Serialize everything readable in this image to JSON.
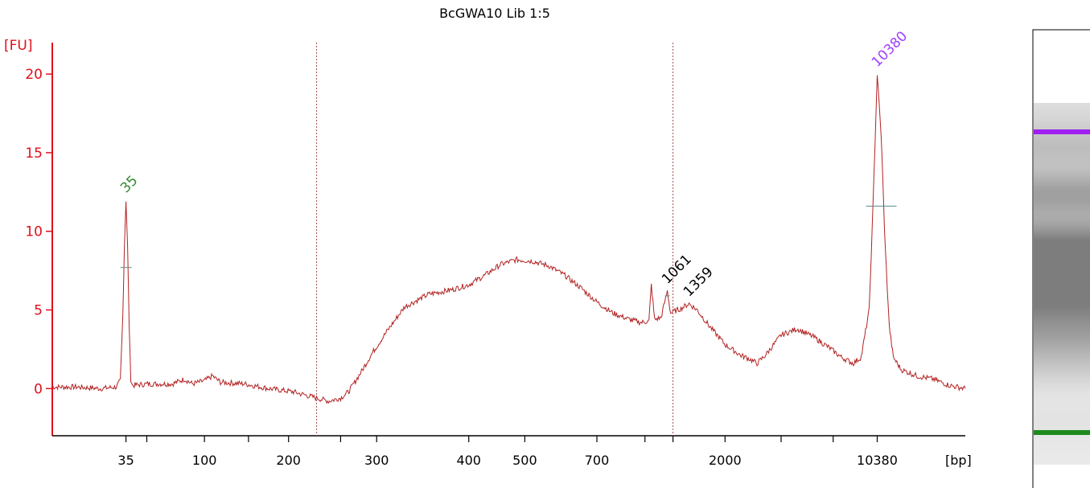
{
  "chart_data": {
    "type": "line",
    "title": "BcGWA10 Lib 1:5",
    "ylabel": "[FU]",
    "xlabel": "[bp]",
    "ylim": [
      -3,
      22
    ],
    "yticks": [
      0,
      5,
      10,
      15,
      20
    ],
    "xtick_labels": [
      "35",
      "100",
      "200",
      "300",
      "400",
      "500",
      "700",
      "2000",
      "10380"
    ],
    "peak_labels": [
      {
        "text": "35",
        "color": "#2e8b2e",
        "x_bp": 35,
        "y": 12.0
      },
      {
        "text": "1061",
        "color": "#000000",
        "x_bp": 1061,
        "y": 6.2
      },
      {
        "text": "1359",
        "color": "#000000",
        "x_bp": 1359,
        "y": 5.4
      },
      {
        "text": "10380",
        "color": "#a040ff",
        "x_bp": 10380,
        "y": 20.0
      }
    ],
    "series": [
      {
        "color": "#b22222",
        "points": [
          [
            0.0,
            0.1
          ],
          [
            0.03,
            0.1
          ],
          [
            0.06,
            0.0
          ],
          [
            0.08,
            0.1
          ],
          [
            0.085,
            0.5
          ],
          [
            0.088,
            4.5
          ],
          [
            0.09,
            9.0
          ],
          [
            0.092,
            12.0
          ],
          [
            0.094,
            9.0
          ],
          [
            0.096,
            4.0
          ],
          [
            0.098,
            0.6
          ],
          [
            0.1,
            0.2
          ],
          [
            0.12,
            0.3
          ],
          [
            0.15,
            0.3
          ],
          [
            0.165,
            0.6
          ],
          [
            0.175,
            0.3
          ],
          [
            0.19,
            0.5
          ],
          [
            0.2,
            0.8
          ],
          [
            0.21,
            0.4
          ],
          [
            0.24,
            0.3
          ],
          [
            0.27,
            0.0
          ],
          [
            0.3,
            -0.2
          ],
          [
            0.33,
            -0.6
          ],
          [
            0.345,
            -0.8
          ],
          [
            0.36,
            -0.6
          ],
          [
            0.37,
            -0.2
          ],
          [
            0.385,
            1.0
          ],
          [
            0.4,
            2.3
          ],
          [
            0.42,
            3.8
          ],
          [
            0.44,
            5.2
          ],
          [
            0.47,
            6.0
          ],
          [
            0.5,
            6.3
          ],
          [
            0.52,
            6.6
          ],
          [
            0.54,
            7.2
          ],
          [
            0.56,
            7.9
          ],
          [
            0.58,
            8.2
          ],
          [
            0.6,
            8.1
          ],
          [
            0.62,
            7.8
          ],
          [
            0.64,
            7.2
          ],
          [
            0.66,
            6.4
          ],
          [
            0.68,
            5.5
          ],
          [
            0.7,
            4.8
          ],
          [
            0.72,
            4.4
          ],
          [
            0.735,
            4.2
          ],
          [
            0.745,
            4.3
          ],
          [
            0.748,
            6.6
          ],
          [
            0.752,
            4.4
          ],
          [
            0.76,
            4.5
          ],
          [
            0.768,
            6.2
          ],
          [
            0.772,
            4.8
          ],
          [
            0.785,
            5.1
          ],
          [
            0.795,
            5.4
          ],
          [
            0.805,
            5.0
          ],
          [
            0.82,
            4.0
          ],
          [
            0.84,
            2.8
          ],
          [
            0.86,
            2.1
          ],
          [
            0.87,
            1.9
          ],
          [
            0.88,
            1.6
          ],
          [
            0.89,
            2.1
          ],
          [
            0.91,
            3.4
          ],
          [
            0.93,
            3.8
          ],
          [
            0.95,
            3.3
          ],
          [
            0.97,
            2.6
          ],
          [
            0.985,
            2.0
          ],
          [
            1.0,
            1.6
          ],
          [
            1.01,
            2.0
          ],
          [
            1.02,
            5.0
          ],
          [
            1.025,
            12.0
          ],
          [
            1.03,
            20.0
          ],
          [
            1.035,
            16.0
          ],
          [
            1.04,
            9.0
          ],
          [
            1.045,
            4.0
          ],
          [
            1.05,
            2.0
          ],
          [
            1.06,
            1.2
          ],
          [
            1.08,
            0.8
          ],
          [
            1.1,
            0.6
          ],
          [
            1.12,
            0.2
          ],
          [
            1.14,
            0.0
          ]
        ]
      }
    ]
  },
  "gel_lane": {
    "upper_marker_color": "#a020f0",
    "lower_marker_color": "#1f8a1f"
  }
}
